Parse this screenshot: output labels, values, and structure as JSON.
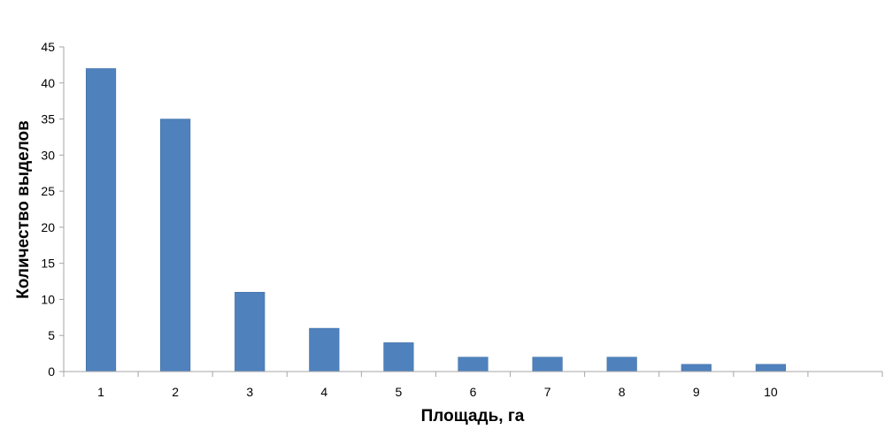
{
  "chart_data": {
    "type": "bar",
    "title": "",
    "xlabel": "Площадь, га",
    "ylabel": "Количество выделов",
    "categories": [
      "1",
      "2",
      "3",
      "4",
      "5",
      "6",
      "7",
      "8",
      "9",
      "10",
      ""
    ],
    "values": [
      42,
      35,
      11,
      6,
      4,
      2,
      2,
      2,
      1,
      1,
      null
    ],
    "ylim": [
      0,
      45
    ],
    "yticks": [
      "0",
      "5",
      "10",
      "15",
      "20",
      "25",
      "30",
      "35",
      "40",
      "45"
    ],
    "grid": false,
    "legend": "none",
    "bar_color": "#4F81BD",
    "axis_color": "#A6A6A6"
  }
}
